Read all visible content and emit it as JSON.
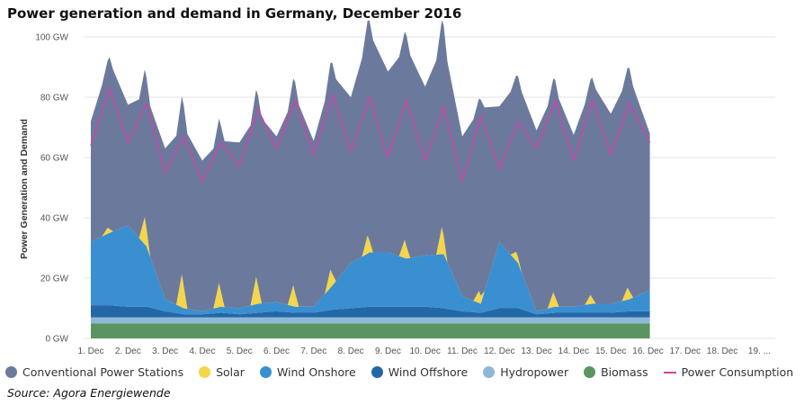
{
  "title": "Power generation and demand in Germany, December 2016",
  "source": "Source: Agora Energiewende",
  "chart_data": {
    "type": "area",
    "title": "Power generation and demand in Germany, December 2016",
    "xlabel": "",
    "ylabel": "Power Generation and Demand",
    "x_categories": [
      "1. Dec",
      "2. Dec",
      "3. Dec",
      "4. Dec",
      "5. Dec",
      "6. Dec",
      "7. Dec",
      "8. Dec",
      "9. Dec",
      "10. Dec",
      "11. Dec",
      "12. Dec",
      "13. Dec",
      "14. Dec",
      "15. Dec",
      "16. Dec",
      "17. Dec",
      "18. Dec",
      "19. ..."
    ],
    "y_ticks": [
      "0 GW",
      "20 GW",
      "40 GW",
      "60 GW",
      "80 GW",
      "100 GW"
    ],
    "ylim": [
      0,
      100
    ],
    "grid": true,
    "legend_position": "bottom",
    "stacking": "stacked",
    "x_units": "day (1 = 1. Dec)",
    "series": [
      {
        "name": "Biomass",
        "color": "#5b9460",
        "x": [
          1,
          16.05
        ],
        "values": [
          5,
          5
        ]
      },
      {
        "name": "Hydropower",
        "color": "#8fb7d8",
        "x": [
          1,
          16.05
        ],
        "values": [
          2,
          2
        ]
      },
      {
        "name": "Wind Offshore",
        "color": "#2467a6",
        "x": [
          1,
          1.5,
          2,
          2.5,
          3,
          3.5,
          4,
          4.5,
          5,
          5.5,
          6,
          6.5,
          7,
          7.5,
          8,
          8.5,
          9,
          9.5,
          10,
          10.5,
          11,
          11.5,
          12,
          12.5,
          13,
          13.5,
          14,
          14.5,
          15,
          15.5,
          16.05
        ],
        "values": [
          4,
          4,
          3.5,
          3.5,
          2,
          1,
          1,
          1.5,
          1,
          1.5,
          2,
          1.5,
          1.5,
          2.5,
          3,
          3.5,
          3.5,
          3.5,
          3.5,
          3,
          2,
          1.5,
          3,
          3,
          1,
          1.5,
          1.5,
          1.5,
          1.5,
          2,
          2
        ]
      },
      {
        "name": "Wind Onshore",
        "color": "#3a8fd0",
        "x": [
          1,
          1.5,
          2,
          2.5,
          3,
          3.5,
          4,
          4.5,
          5,
          5.5,
          6,
          6.5,
          7,
          7.5,
          8,
          8.5,
          9,
          9.5,
          10,
          10.5,
          11,
          11.5,
          12,
          12.5,
          13,
          13.5,
          14,
          14.5,
          15,
          15.5,
          16.05
        ],
        "values": [
          21,
          24,
          27,
          20,
          4,
          2,
          1,
          2,
          2,
          3,
          3,
          2,
          2,
          8,
          15,
          18,
          18,
          16,
          17,
          18,
          5,
          3,
          22,
          15,
          1,
          2,
          2,
          3,
          3,
          4,
          7
        ]
      },
      {
        "name": "Solar",
        "color": "#f5d54a",
        "x": [
          1,
          1.3,
          1.45,
          1.6,
          1.8,
          2,
          2.3,
          2.45,
          2.6,
          2.8,
          3,
          3.3,
          3.45,
          3.6,
          3.8,
          4,
          4.3,
          4.45,
          4.6,
          4.8,
          5,
          5.3,
          5.45,
          5.6,
          5.8,
          6,
          6.3,
          6.45,
          6.6,
          6.8,
          7,
          7.3,
          7.45,
          7.6,
          7.8,
          8,
          8.3,
          8.45,
          8.6,
          8.8,
          9,
          9.3,
          9.45,
          9.6,
          9.8,
          10,
          10.3,
          10.45,
          10.6,
          10.8,
          11,
          11.3,
          11.45,
          11.6,
          11.8,
          12,
          12.3,
          12.45,
          12.6,
          12.8,
          13,
          13.3,
          13.45,
          13.6,
          13.8,
          14,
          14.3,
          14.45,
          14.6,
          14.8,
          15,
          15.3,
          15.45,
          15.6,
          15.8,
          16.05
        ],
        "values": [
          0,
          0,
          2,
          0,
          0,
          0,
          0,
          9,
          0,
          0,
          0,
          0,
          11,
          0,
          0,
          0,
          0,
          8,
          0,
          0,
          0,
          0,
          9,
          0,
          0,
          0,
          0,
          7,
          0,
          0,
          0,
          0,
          6,
          0,
          0,
          0,
          0,
          6,
          0,
          0,
          0,
          0,
          6,
          0,
          0,
          0,
          0,
          9,
          0,
          0,
          0,
          0,
          4,
          0,
          0,
          0,
          0,
          3,
          0,
          0,
          0,
          0,
          5,
          0,
          0,
          0,
          0,
          3,
          0,
          0,
          0,
          0,
          4,
          0,
          0,
          0
        ]
      },
      {
        "name": "Conventional Power Stations",
        "color": "#6b7a9c",
        "x": [
          1,
          1.5,
          2,
          2.5,
          3,
          3.5,
          4,
          4.5,
          5,
          5.5,
          6,
          6.5,
          7,
          7.5,
          8,
          8.5,
          9,
          9.5,
          10,
          10.5,
          11,
          11.5,
          12,
          12.5,
          13,
          13.5,
          14,
          14.5,
          15,
          15.5,
          16.05
        ],
        "values": [
          40,
          57,
          40,
          50,
          50,
          60,
          50,
          55,
          55,
          63,
          55,
          70,
          55,
          70,
          55,
          73,
          60,
          70,
          56,
          70,
          53,
          65,
          45,
          60,
          60,
          72,
          57,
          73,
          63,
          74,
          52
        ]
      }
    ],
    "overlay": {
      "name": "Power Consumption",
      "type": "line",
      "color": "#c24aa8",
      "x": [
        1,
        1.5,
        2,
        2.5,
        3,
        3.5,
        4,
        4.5,
        5,
        5.5,
        6,
        6.5,
        7,
        7.5,
        8,
        8.5,
        9,
        9.5,
        10,
        10.5,
        11,
        11.5,
        12,
        12.5,
        13,
        13.5,
        14,
        14.5,
        15,
        15.5,
        16.05
      ],
      "values": [
        64,
        83,
        65,
        78,
        55,
        67,
        52,
        65,
        57,
        76,
        63,
        79,
        61,
        81,
        62,
        80,
        60,
        79,
        59,
        77,
        52,
        74,
        56,
        72,
        63,
        79,
        59,
        79,
        61,
        78,
        65
      ]
    }
  },
  "legend": [
    {
      "label": "Conventional Power Stations",
      "color": "#6b7a9c",
      "shape": "dot"
    },
    {
      "label": "Solar",
      "color": "#f5d54a",
      "shape": "dot"
    },
    {
      "label": "Wind Onshore",
      "color": "#3a8fd0",
      "shape": "dot"
    },
    {
      "label": "Wind Offshore",
      "color": "#2467a6",
      "shape": "dot"
    },
    {
      "label": "Hydropower",
      "color": "#8fb7d8",
      "shape": "dot"
    },
    {
      "label": "Biomass",
      "color": "#5b9460",
      "shape": "dot"
    },
    {
      "label": "Power Consumption",
      "color": "#c24aa8",
      "shape": "line"
    }
  ]
}
